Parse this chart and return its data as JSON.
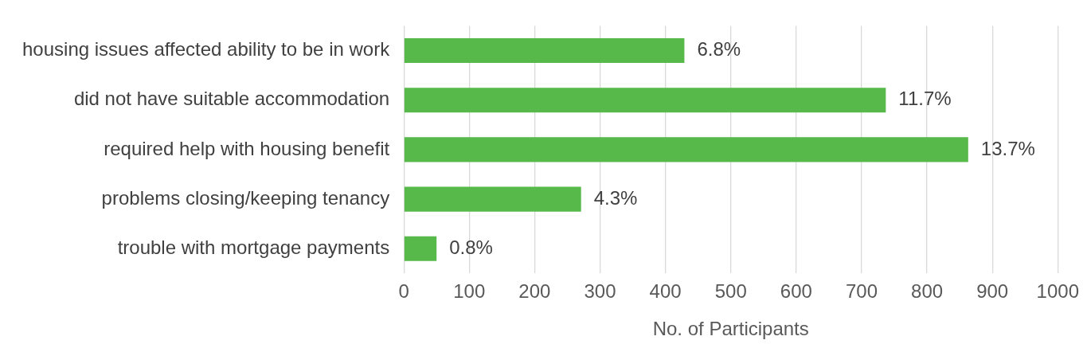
{
  "chart_data": {
    "type": "bar",
    "orientation": "horizontal",
    "xlabel": "No. of Participants",
    "categories": [
      "housing issues affected ability to be in work",
      "did not have suitable accommodation",
      "required help with housing benefit",
      "problems closing/keeping tenancy",
      "trouble with mortgage payments"
    ],
    "values": [
      429,
      737,
      863,
      271,
      50
    ],
    "annotations": [
      {
        "text": "6.8%",
        "x": 429,
        "y": "housing issues affected ability to be in work"
      },
      {
        "text": "11.7%",
        "x": 737,
        "y": "did not have suitable accommodation"
      },
      {
        "text": "13.7%",
        "x": 863,
        "y": "required help with housing benefit"
      },
      {
        "text": "4.3%",
        "x": 271,
        "y": "problems closing/keeping tenancy"
      },
      {
        "text": "0.8%",
        "x": 50,
        "y": "trouble with mortgage payments"
      }
    ],
    "color": "#56b94a",
    "xlim": [
      0,
      1000
    ],
    "xticks": [
      0,
      100,
      200,
      300,
      400,
      500,
      600,
      700,
      800,
      900,
      1000
    ],
    "grid": "x",
    "legend": false
  }
}
